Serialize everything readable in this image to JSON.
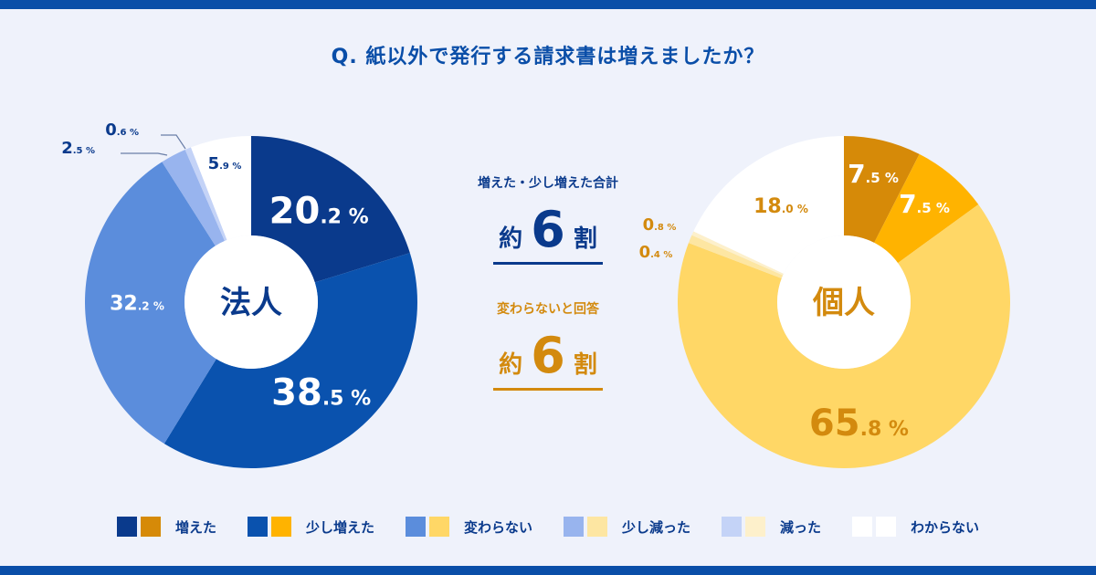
{
  "title": "Q. 紙以外で発行する請求書は増えましたか？",
  "chart_data": [
    {
      "type": "pie",
      "center_label": "法人",
      "categories": [
        "増えた",
        "少し増えた",
        "変わらない",
        "少し減った",
        "減った",
        "わからない"
      ],
      "values": [
        20.2,
        38.5,
        32.2,
        2.5,
        0.6,
        5.9
      ],
      "value_labels": [
        {
          "int": "20",
          "dec": ".2"
        },
        {
          "int": "38",
          "dec": ".5"
        },
        {
          "int": "32",
          "dec": ".2"
        },
        {
          "int": "2",
          "dec": ".5"
        },
        {
          "int": "0",
          "dec": ".6"
        },
        {
          "int": "5",
          "dec": ".9"
        }
      ],
      "unit": "%",
      "colors": [
        "#0a3a8c",
        "#0a52ae",
        "#5b8ddc",
        "#98b4ee",
        "#c4d3f7",
        "#ffffff"
      ]
    },
    {
      "type": "pie",
      "center_label": "個人",
      "categories": [
        "増えた",
        "少し増えた",
        "変わらない",
        "少し減った",
        "減った",
        "わからない"
      ],
      "values": [
        7.5,
        7.5,
        65.8,
        0.8,
        0.4,
        18.0
      ],
      "value_labels": [
        {
          "int": "7",
          "dec": ".5"
        },
        {
          "int": "7",
          "dec": ".5"
        },
        {
          "int": "65",
          "dec": ".8"
        },
        {
          "int": "0",
          "dec": ".8"
        },
        {
          "int": "0",
          "dec": ".4"
        },
        {
          "int": "18",
          "dec": ".0"
        }
      ],
      "unit": "%",
      "colors": [
        "#d68a08",
        "#ffb300",
        "#ffd766",
        "#fde6a2",
        "#fdf0cb",
        "#ffffff"
      ]
    }
  ],
  "summary": {
    "corp_label": "増えた・少し増えた合計",
    "indiv_label": "変わらないと回答",
    "prefix": "約",
    "number": "6",
    "suffix": "割"
  },
  "legend": {
    "items": [
      "増えた",
      "少し増えた",
      "変わらない",
      "少し減った",
      "減った",
      "わからない"
    ]
  }
}
